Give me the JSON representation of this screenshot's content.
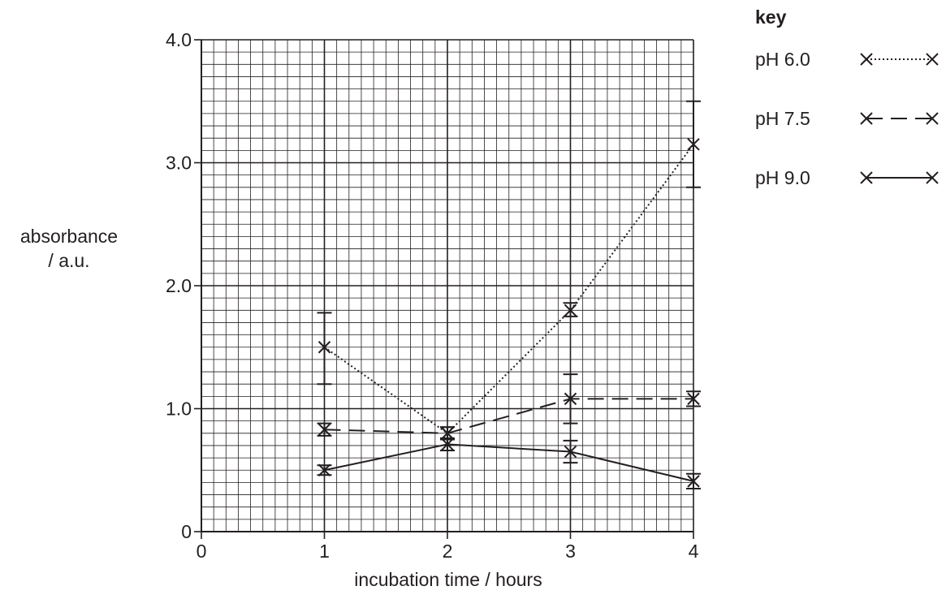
{
  "chart_data": {
    "type": "line",
    "xlabel": "incubation time / hours",
    "ylabel_lines": [
      "absorbance",
      "/ a.u."
    ],
    "xlim": [
      0,
      4
    ],
    "ylim": [
      0,
      4.0
    ],
    "x_ticks": [
      "0",
      "1",
      "2",
      "3",
      "4"
    ],
    "y_ticks": [
      "0",
      "1.0",
      "2.0",
      "3.0",
      "4.0"
    ],
    "grid": true,
    "legend_title": "key",
    "legend_position": "top-right",
    "series": [
      {
        "name": "pH 6.0",
        "line_style": "dotted",
        "x": [
          1,
          2,
          3,
          4
        ],
        "y": [
          1.5,
          0.8,
          1.8,
          3.15
        ],
        "error_low": [
          1.2,
          0.75,
          1.75,
          2.8
        ],
        "error_high": [
          1.78,
          0.85,
          1.86,
          3.5
        ]
      },
      {
        "name": "pH 7.5",
        "line_style": "dashed",
        "x": [
          1,
          2,
          3,
          4
        ],
        "y": [
          0.83,
          0.8,
          1.08,
          1.08
        ],
        "error_low": [
          0.78,
          0.75,
          0.88,
          1.02
        ],
        "error_high": [
          0.88,
          0.85,
          1.28,
          1.14
        ]
      },
      {
        "name": "pH 9.0",
        "line_style": "solid",
        "x": [
          1,
          2,
          3,
          4
        ],
        "y": [
          0.5,
          0.71,
          0.65,
          0.41
        ],
        "error_low": [
          0.46,
          0.66,
          0.56,
          0.35
        ],
        "error_high": [
          0.54,
          0.76,
          0.74,
          0.47
        ]
      }
    ]
  }
}
